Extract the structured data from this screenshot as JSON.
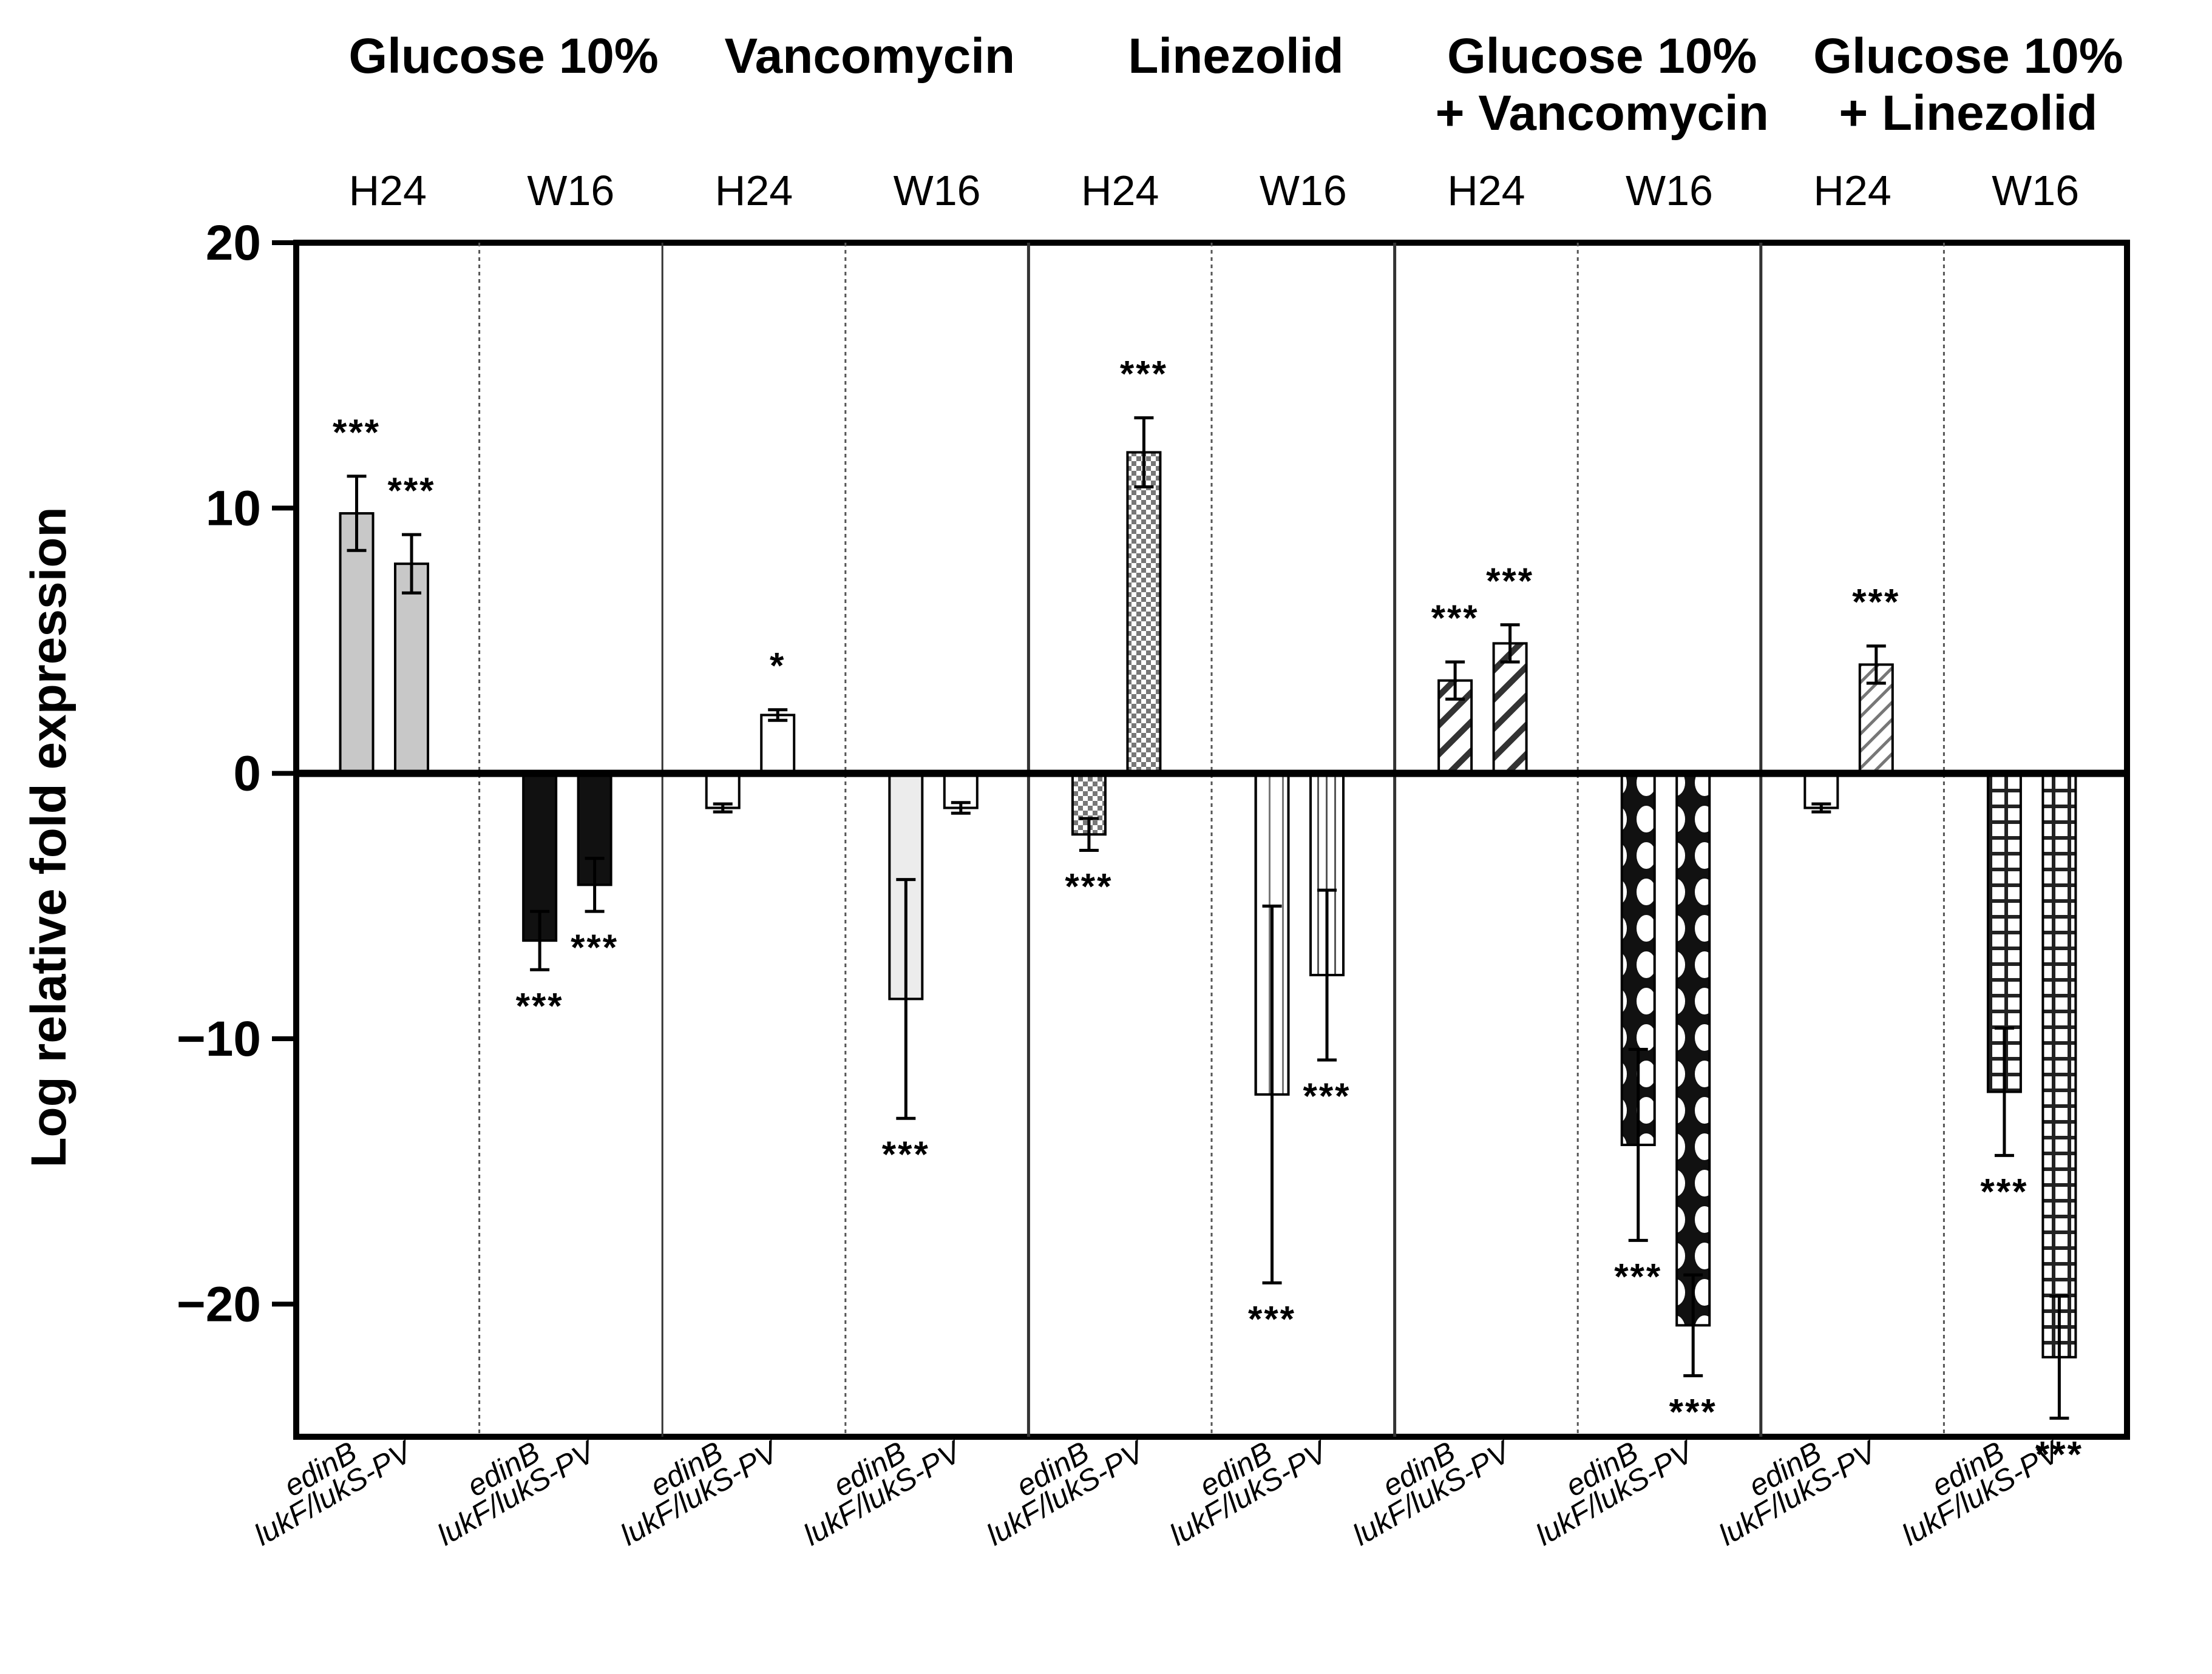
{
  "chart_data": {
    "type": "bar",
    "ylabel": "Log relative fold expression",
    "ylim": [
      -25,
      20
    ],
    "yticks": [
      20,
      10,
      0,
      -10,
      -20
    ],
    "ytick_labels": [
      "20",
      "10",
      "0",
      "−10",
      "−20"
    ],
    "gene_labels": [
      "edinB",
      "lukF/lukS-PV"
    ],
    "conditions": [
      {
        "name_lines": [
          "Glucose 10%"
        ],
        "pattern": "solid-gray",
        "timepoints": [
          {
            "label": "H24",
            "bars": [
              {
                "gene": "edinB",
                "value": 9.8,
                "err": 1.4,
                "sig": "***"
              },
              {
                "gene": "lukF/lukS-PV",
                "value": 7.9,
                "err": 1.1,
                "sig": "***"
              }
            ]
          },
          {
            "label": "W16",
            "bars": [
              {
                "gene": "edinB",
                "value": -6.3,
                "err": 1.1,
                "sig": "***"
              },
              {
                "gene": "lukF/lukS-PV",
                "value": -4.2,
                "err": 1.0,
                "sig": "***"
              }
            ]
          }
        ]
      },
      {
        "name_lines": [
          "Vancomycin"
        ],
        "pattern": "white",
        "timepoints": [
          {
            "label": "H24",
            "bars": [
              {
                "gene": "edinB",
                "value": -1.3,
                "err": 0.15,
                "sig": ""
              },
              {
                "gene": "lukF/lukS-PV",
                "value": 2.2,
                "err": 0.2,
                "sig": "*"
              }
            ]
          },
          {
            "label": "W16",
            "bars": [
              {
                "gene": "edinB",
                "value": -8.5,
                "err": 4.5,
                "sig": "***"
              },
              {
                "gene": "lukF/lukS-PV",
                "value": -1.3,
                "err": 0.2,
                "sig": ""
              }
            ]
          }
        ]
      },
      {
        "name_lines": [
          "Linezolid"
        ],
        "pattern": "checker",
        "timepoints": [
          {
            "label": "H24",
            "bars": [
              {
                "gene": "edinB",
                "value": -2.3,
                "err": 0.6,
                "sig": "***"
              },
              {
                "gene": "lukF/lukS-PV",
                "value": 12.1,
                "err": 1.3,
                "sig": "***"
              }
            ]
          },
          {
            "label": "W16",
            "bars": [
              {
                "gene": "edinB",
                "value": -12.1,
                "err": 7.1,
                "sig": "***"
              },
              {
                "gene": "lukF/lukS-PV",
                "value": -7.6,
                "err": 3.2,
                "sig": "***"
              }
            ]
          }
        ]
      },
      {
        "name_lines": [
          "Glucose 10%",
          "+ Vancomycin"
        ],
        "pattern": "hatch-diamond",
        "timepoints": [
          {
            "label": "H24",
            "bars": [
              {
                "gene": "edinB",
                "value": 3.5,
                "err": 0.7,
                "sig": "***"
              },
              {
                "gene": "lukF/lukS-PV",
                "value": 4.9,
                "err": 0.7,
                "sig": "***"
              }
            ]
          },
          {
            "label": "W16",
            "bars": [
              {
                "gene": "edinB",
                "value": -14.0,
                "err": 3.6,
                "sig": "***"
              },
              {
                "gene": "lukF/lukS-PV",
                "value": -20.8,
                "err": 1.9,
                "sig": "***"
              }
            ]
          }
        ]
      },
      {
        "name_lines": [
          "Glucose 10%",
          "+ Linezolid"
        ],
        "pattern": "hatch-grid",
        "timepoints": [
          {
            "label": "H24",
            "bars": [
              {
                "gene": "edinB",
                "value": -1.3,
                "err": 0.15,
                "sig": ""
              },
              {
                "gene": "lukF/lukS-PV",
                "value": 4.1,
                "err": 0.7,
                "sig": "***"
              }
            ]
          },
          {
            "label": "W16",
            "bars": [
              {
                "gene": "edinB",
                "value": -12.0,
                "err": 2.4,
                "sig": "***"
              },
              {
                "gene": "lukF/lukS-PV",
                "value": -22.0,
                "err": 2.3,
                "sig": "***"
              }
            ]
          }
        ]
      }
    ],
    "colors": {
      "solid_gray": "#c8c8c8",
      "dark": "#1a1a1a",
      "light": "#e6e6e6"
    }
  }
}
